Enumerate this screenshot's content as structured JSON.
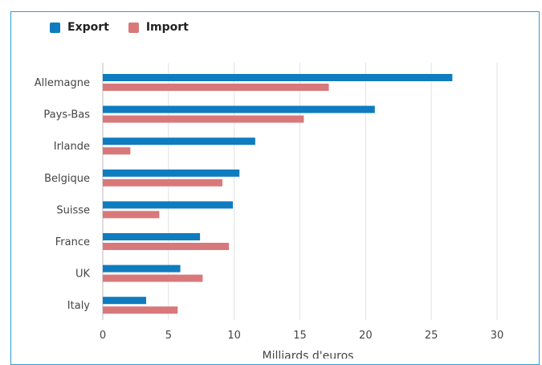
{
  "chart_data": {
    "type": "bar",
    "orientation": "horizontal",
    "categories": [
      "Allemagne",
      "Pays-Bas",
      "Irlande",
      "Belgique",
      "Suisse",
      "France",
      "UK",
      "Italy"
    ],
    "series": [
      {
        "name": "Export",
        "color": "#0f7cbf",
        "values": [
          26.6,
          20.7,
          11.6,
          10.4,
          9.9,
          7.4,
          5.9,
          3.3
        ]
      },
      {
        "name": "Import",
        "color": "#d9787a",
        "values": [
          17.2,
          15.3,
          2.1,
          9.1,
          4.3,
          9.6,
          7.6,
          5.7
        ]
      }
    ],
    "xlabel": "Milliards d'euros",
    "xlim": [
      0,
      30
    ],
    "xticks": [
      0,
      5,
      10,
      15,
      20,
      25,
      30
    ],
    "grid": true,
    "legend_position": "top-left"
  }
}
